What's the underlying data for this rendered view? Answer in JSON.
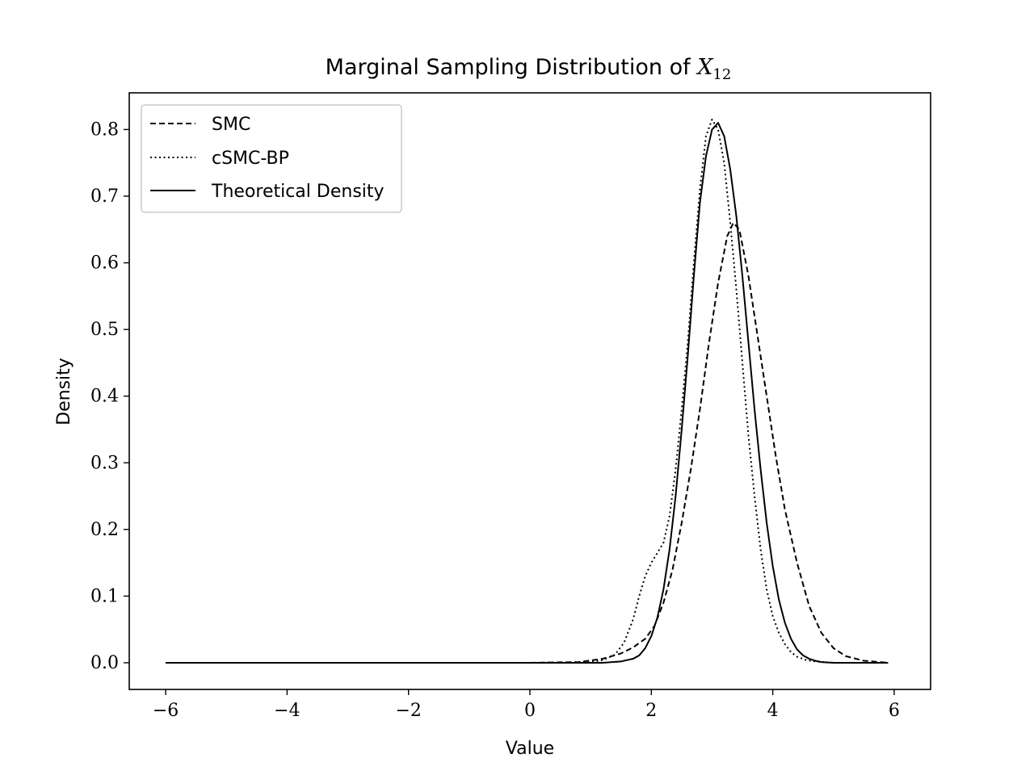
{
  "chart_data": {
    "type": "line",
    "title_prefix": "Marginal Sampling Distribution of ",
    "title_math_var": "X",
    "title_math_sub": "12",
    "xlabel": "Value",
    "ylabel": "Density",
    "xlim": [
      -6.6,
      6.6
    ],
    "ylim": [
      -0.04,
      0.855
    ],
    "xticks": [
      -6,
      -4,
      -2,
      0,
      2,
      4,
      6
    ],
    "xtick_labels": [
      "−6",
      "−4",
      "−2",
      "0",
      "2",
      "4",
      "6"
    ],
    "yticks": [
      0.0,
      0.1,
      0.2,
      0.3,
      0.4,
      0.5,
      0.6,
      0.7,
      0.8
    ],
    "ytick_labels": [
      "0.0",
      "0.1",
      "0.2",
      "0.3",
      "0.4",
      "0.5",
      "0.6",
      "0.7",
      "0.8"
    ],
    "legend_position": "top-left",
    "grid": false,
    "series": [
      {
        "name": "SMC",
        "style": "dashed",
        "color": "#000000",
        "x": [
          -6.0,
          -4.0,
          -2.0,
          0.0,
          0.8,
          1.2,
          1.5,
          1.7,
          1.9,
          2.05,
          2.2,
          2.35,
          2.5,
          2.65,
          2.8,
          2.95,
          3.1,
          3.25,
          3.35,
          3.45,
          3.6,
          3.75,
          3.9,
          4.05,
          4.2,
          4.4,
          4.6,
          4.8,
          5.0,
          5.2,
          5.5,
          5.9
        ],
        "y": [
          0.0,
          0.0,
          0.0,
          0.0,
          0.001,
          0.006,
          0.014,
          0.023,
          0.036,
          0.055,
          0.09,
          0.14,
          0.21,
          0.29,
          0.38,
          0.48,
          0.57,
          0.64,
          0.66,
          0.65,
          0.58,
          0.49,
          0.4,
          0.31,
          0.23,
          0.15,
          0.085,
          0.045,
          0.022,
          0.01,
          0.003,
          0.0
        ]
      },
      {
        "name": "cSMC-BP",
        "style": "dotted",
        "color": "#000000",
        "x": [
          -6.0,
          -4.0,
          -2.0,
          0.0,
          1.0,
          1.2,
          1.4,
          1.55,
          1.7,
          1.8,
          1.9,
          2.0,
          2.1,
          2.2,
          2.3,
          2.4,
          2.5,
          2.6,
          2.7,
          2.8,
          2.9,
          3.0,
          3.1,
          3.2,
          3.3,
          3.4,
          3.5,
          3.6,
          3.7,
          3.8,
          3.9,
          4.0,
          4.1,
          4.2,
          4.3,
          4.4,
          4.55,
          4.7,
          4.85,
          5.0,
          5.3,
          5.9
        ],
        "y": [
          0.0,
          0.0,
          0.0,
          0.0,
          0.001,
          0.004,
          0.012,
          0.03,
          0.065,
          0.1,
          0.13,
          0.15,
          0.165,
          0.18,
          0.22,
          0.29,
          0.38,
          0.48,
          0.6,
          0.71,
          0.79,
          0.815,
          0.8,
          0.75,
          0.66,
          0.56,
          0.45,
          0.34,
          0.25,
          0.17,
          0.11,
          0.07,
          0.045,
          0.028,
          0.016,
          0.009,
          0.004,
          0.002,
          0.001,
          0.0,
          0.0,
          0.0
        ]
      },
      {
        "name": "Theoretical Density",
        "style": "solid",
        "color": "#000000",
        "x": [
          -6.0,
          -4.0,
          -2.0,
          0.0,
          1.2,
          1.5,
          1.7,
          1.8,
          1.9,
          2.0,
          2.1,
          2.2,
          2.3,
          2.4,
          2.5,
          2.6,
          2.7,
          2.8,
          2.9,
          3.0,
          3.1,
          3.2,
          3.3,
          3.4,
          3.5,
          3.6,
          3.7,
          3.8,
          3.9,
          4.0,
          4.1,
          4.2,
          4.3,
          4.4,
          4.5,
          4.6,
          4.7,
          4.8,
          5.0,
          5.3,
          5.9
        ],
        "y": [
          0.0,
          0.0,
          0.0,
          0.0,
          0.0,
          0.002,
          0.006,
          0.011,
          0.022,
          0.04,
          0.068,
          0.11,
          0.17,
          0.25,
          0.35,
          0.46,
          0.58,
          0.69,
          0.76,
          0.8,
          0.81,
          0.79,
          0.74,
          0.67,
          0.58,
          0.48,
          0.38,
          0.29,
          0.21,
          0.145,
          0.095,
          0.06,
          0.036,
          0.02,
          0.011,
          0.006,
          0.003,
          0.001,
          0.0,
          0.0,
          0.0
        ]
      }
    ]
  }
}
